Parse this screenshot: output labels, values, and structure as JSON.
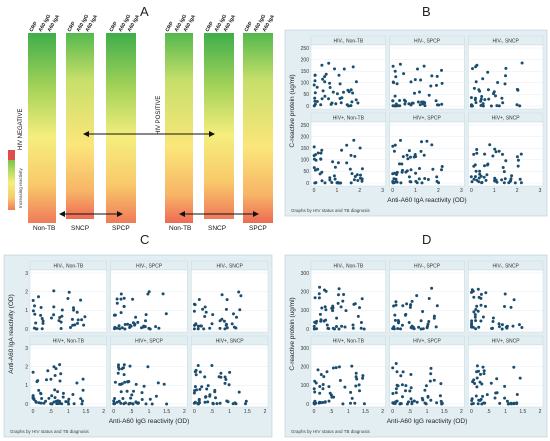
{
  "colors": {
    "panel_bg": "#e3eef2",
    "cell_bg": "#ffffff",
    "point": "#1b4d6e",
    "strip": "#e3eef2"
  },
  "panel_labels": [
    "A",
    "B",
    "C",
    "D"
  ],
  "heatmap": {
    "col_headers": [
      "CRP",
      "A60 IgG",
      "A60 IgA"
    ],
    "groups": [
      "Non-TB",
      "SNCP",
      "SPCP"
    ],
    "side_negative": "HIV NEGATIVE",
    "side_positive": "HIV POSITIVE",
    "legend_label": "Increasing reactivity"
  },
  "chart_data": [
    {
      "panel": "B",
      "type": "scatter",
      "facets": [
        "HIV-, Non-TB",
        "HIV-, SPCP",
        "HIV-, SNCP",
        "HIV+, Non-TB",
        "HIV+, SPCP",
        "HIV+, SNCP"
      ],
      "xlabel": "Anti-A60 IgA reactivity (OD)",
      "ylabel": "C-reactive protein (ug/ml)",
      "xticks": [
        "0",
        "1",
        "2",
        "3"
      ],
      "xlim": [
        0,
        3
      ],
      "yticks": [
        "0",
        "50",
        "100",
        "150",
        "200",
        "250"
      ],
      "ylim": [
        0,
        250
      ],
      "note": "Graphs by HIV status and TB diagnosis"
    },
    {
      "panel": "C",
      "type": "scatter",
      "facets": [
        "HIV-, Non-TB",
        "HIV-, SPCP",
        "HIV-, SNCP",
        "HIV+, Non-TB",
        "HIV+, SPCP",
        "HIV+, SNCP"
      ],
      "xlabel": "Anti-A60 IgG reactivity (OD)",
      "ylabel": "Anti-A60 IgA reactivity (OD)",
      "xticks": [
        "0",
        ".5",
        "1",
        "1.5",
        "2"
      ],
      "xlim": [
        0,
        2
      ],
      "yticks": [
        "0",
        "1",
        "2",
        "3"
      ],
      "ylim": [
        0,
        3
      ],
      "note": "Graphs by HIV status and TB diagnosis"
    },
    {
      "panel": "D",
      "type": "scatter",
      "facets": [
        "HIV-, Non-TB",
        "HIV-, SPCP",
        "HIV-, SNCP",
        "HIV+, Non-TB",
        "HIV+, SPCP",
        "HIV+, SNCP"
      ],
      "xlabel": "Anti-A60 IgG reactivity (OD)",
      "ylabel": "C-reactive protein (ug/ml)",
      "xticks": [
        "0",
        ".5",
        "1",
        "1.5",
        "2"
      ],
      "xlim": [
        0,
        2
      ],
      "yticks": [
        "0",
        "100",
        "200",
        "300"
      ],
      "ylim": [
        0,
        300
      ],
      "note": "Graphs by HIV status and TB diagnosis"
    }
  ]
}
